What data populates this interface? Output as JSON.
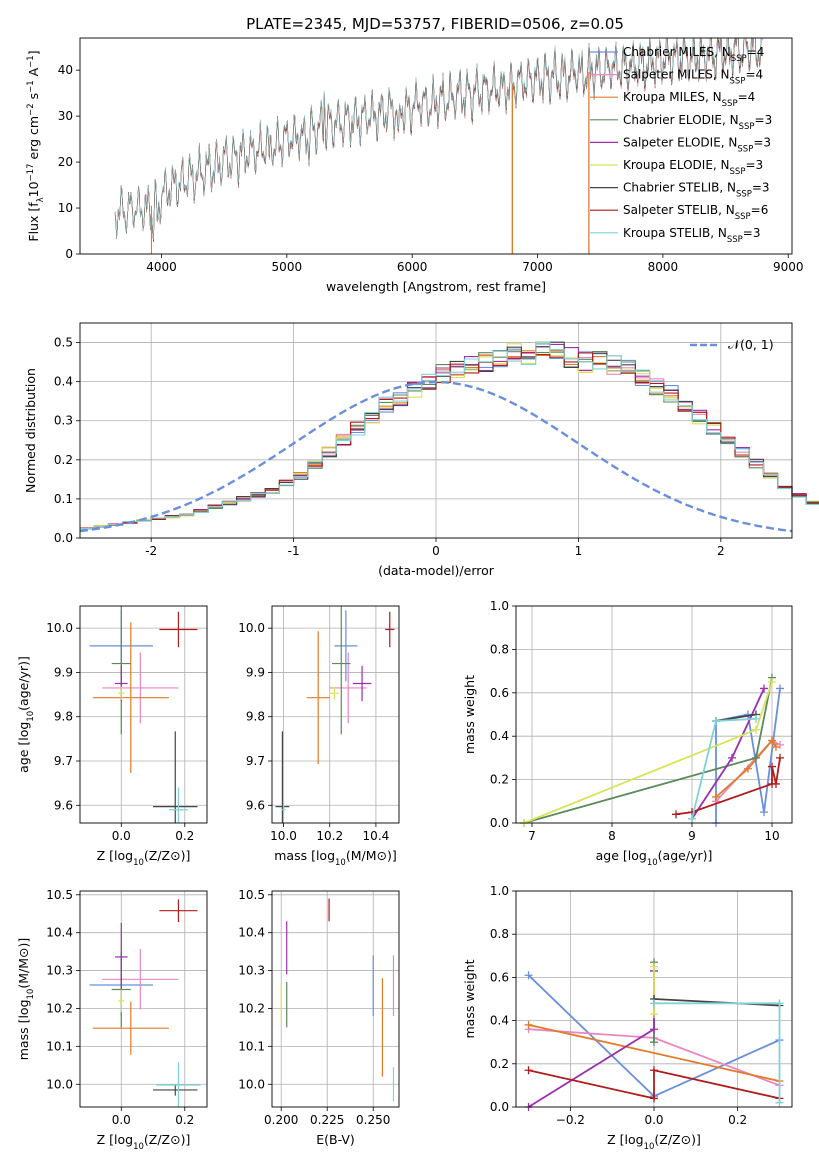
{
  "figure_title": "PLATE=2345, MJD=53757, FIBERID=0506, z=0.05",
  "colors": {
    "Chabrier MILES": "#6a8fdc",
    "Salpeter MILES": "#e887c2",
    "Kroupa MILES": "#e07b2a",
    "Chabrier ELODIE": "#5b8a5b",
    "Salpeter ELODIE": "#9b2fb0",
    "Kroupa ELODIE": "#d7e45a",
    "Chabrier STELIB": "#444444",
    "Salpeter STELIB": "#b01c1c",
    "Kroupa STELIB": "#7fd3d8"
  },
  "chart_data": [
    {
      "id": "spectrum",
      "type": "line",
      "xlabel": "wavelength [Angstrom, rest frame]",
      "ylabel_parts": [
        "Flux [f",
        "λ",
        "10",
        "−17",
        " erg cm",
        "−2",
        " s",
        "−1",
        " A",
        "−1",
        "]"
      ],
      "xlim": [
        3350,
        9030
      ],
      "ylim": [
        0,
        47
      ],
      "xticks": [
        4000,
        5000,
        6000,
        7000,
        8000,
        9000
      ],
      "yticks": [
        0,
        10,
        20,
        30,
        40
      ],
      "grid": false,
      "legend_position": "upper-right",
      "series": [
        {
          "name": "Chabrier MILES",
          "nssp": "4"
        },
        {
          "name": "Salpeter MILES",
          "nssp": "4"
        },
        {
          "name": "Kroupa MILES",
          "nssp": "4"
        },
        {
          "name": "Chabrier ELODIE",
          "nssp": "3"
        },
        {
          "name": "Salpeter ELODIE",
          "nssp": "3"
        },
        {
          "name": "Kroupa ELODIE",
          "nssp": "3"
        },
        {
          "name": "Chabrier STELIB",
          "nssp": "3"
        },
        {
          "name": "Salpeter STELIB",
          "nssp": "6"
        },
        {
          "name": "Kroupa STELIB",
          "nssp": "3"
        }
      ],
      "continuum_knots": [
        [
          3630,
          9
        ],
        [
          3900,
          10
        ],
        [
          4100,
          15
        ],
        [
          4500,
          20
        ],
        [
          5000,
          25
        ],
        [
          5500,
          29
        ],
        [
          6000,
          32
        ],
        [
          6500,
          35
        ],
        [
          7000,
          38
        ],
        [
          7500,
          40
        ],
        [
          8000,
          42
        ],
        [
          8500,
          44
        ],
        [
          8800,
          45
        ]
      ],
      "absorption_features": [
        [
          3934,
          5
        ],
        [
          3969,
          5
        ],
        [
          4861,
          3
        ],
        [
          5175,
          4
        ],
        [
          5890,
          8
        ],
        [
          6563,
          3
        ]
      ],
      "emission_features": [
        [
          5300,
          10
        ],
        [
          6563,
          8
        ]
      ],
      "drops": [
        {
          "series": "Kroupa MILES",
          "x": 3920
        },
        {
          "series": "Kroupa ELODIE",
          "x": 6795
        },
        {
          "series": "Kroupa MILES",
          "x": 6800
        },
        {
          "series": "Salpeter STELIB",
          "x": 7410
        },
        {
          "series": "Kroupa MILES",
          "x": 7410
        }
      ]
    },
    {
      "id": "residuals",
      "type": "histogram",
      "xlabel": "(data-model)/error",
      "ylabel": "Normed distribution",
      "xlim": [
        -2.5,
        2.5
      ],
      "ylim": [
        0,
        0.55
      ],
      "xticks": [
        -2,
        -1,
        0,
        1,
        2
      ],
      "yticks": [
        0.0,
        0.1,
        0.2,
        0.3,
        0.4,
        0.5
      ],
      "grid": true,
      "legend_position": "upper-right",
      "reference_curve": {
        "label_parts": [
          "𝒩",
          "(0, 1)"
        ],
        "mean": 0,
        "sigma": 1,
        "color": "#6a8fdc"
      },
      "bin_width": 0.1,
      "bin_start": -2.5,
      "envelope_values": [
        0.025,
        0.03,
        0.035,
        0.04,
        0.045,
        0.05,
        0.055,
        0.06,
        0.07,
        0.08,
        0.09,
        0.1,
        0.11,
        0.12,
        0.14,
        0.16,
        0.19,
        0.22,
        0.25,
        0.28,
        0.31,
        0.34,
        0.36,
        0.38,
        0.4,
        0.42,
        0.43,
        0.44,
        0.45,
        0.46,
        0.47,
        0.47,
        0.48,
        0.48,
        0.46,
        0.45,
        0.45,
        0.44,
        0.43,
        0.41,
        0.39,
        0.37,
        0.34,
        0.31,
        0.28,
        0.25,
        0.22,
        0.19,
        0.16,
        0.13,
        0.11,
        0.09,
        0.075,
        0.065,
        0.055,
        0.045,
        0.04,
        0.035,
        0.03,
        0.025,
        0.022,
        0.02,
        0.02,
        0.018,
        0.018,
        0.016,
        0.015,
        0.014,
        0.013,
        0.012
      ]
    },
    {
      "id": "age_vs_Z",
      "type": "errorbar",
      "xlabel_parts": [
        "Z [log",
        "10",
        "(Z/Z",
        "⊙",
        ")]"
      ],
      "ylabel_parts": [
        "age  [log",
        "10",
        "(age/yr)]"
      ],
      "xlim": [
        -0.13,
        0.27
      ],
      "ylim": [
        9.56,
        10.05
      ],
      "xticks": [
        0.0,
        0.2
      ],
      "yticks": [
        9.6,
        9.7,
        9.8,
        9.9,
        10.0
      ],
      "grid": true,
      "points": [
        {
          "series": "Chabrier MILES",
          "x": 0.0,
          "xerr": 0.1,
          "y": 9.96,
          "yerr": 0.08
        },
        {
          "series": "Salpeter MILES",
          "x": 0.06,
          "xerr": 0.12,
          "y": 9.865,
          "yerr": 0.08
        },
        {
          "series": "Kroupa MILES",
          "x": 0.03,
          "xerr": 0.12,
          "y": 9.843,
          "yerr": 0.17
        },
        {
          "series": "Chabrier ELODIE",
          "x": 0.0,
          "xerr": 0.03,
          "y": 9.92,
          "yerr": 0.16
        },
        {
          "series": "Salpeter ELODIE",
          "x": 0.0,
          "xerr": 0.02,
          "y": 9.875,
          "yerr": 0.04
        },
        {
          "series": "Kroupa ELODIE",
          "x": 0.0,
          "xerr": 0.01,
          "y": 9.853,
          "yerr": 0.015
        },
        {
          "series": "Chabrier STELIB",
          "x": 0.17,
          "xerr": 0.07,
          "y": 9.597,
          "yerr": 0.17
        },
        {
          "series": "Salpeter STELIB",
          "x": 0.18,
          "xerr": 0.06,
          "y": 9.997,
          "yerr": 0.04
        },
        {
          "series": "Kroupa STELIB",
          "x": 0.18,
          "xerr": 0.03,
          "y": 9.59,
          "yerr": 0.05
        }
      ]
    },
    {
      "id": "age_vs_mass",
      "type": "errorbar",
      "xlabel_parts": [
        "mass [log",
        "10",
        "(M/M",
        "⊙",
        ")]"
      ],
      "ylabel_parts": [],
      "xlim": [
        9.95,
        10.5
      ],
      "ylim": [
        9.56,
        10.05
      ],
      "xticks": [
        10.0,
        10.2,
        10.4
      ],
      "yticks": [
        9.6,
        9.7,
        9.8,
        9.9,
        10.0
      ],
      "grid": true,
      "points": [
        {
          "series": "Chabrier MILES",
          "x": 10.27,
          "xerr": 0.05,
          "y": 9.96,
          "yerr": 0.08
        },
        {
          "series": "Salpeter MILES",
          "x": 10.28,
          "xerr": 0.08,
          "y": 9.865,
          "yerr": 0.08
        },
        {
          "series": "Kroupa MILES",
          "x": 10.15,
          "xerr": 0.05,
          "y": 9.843,
          "yerr": 0.15
        },
        {
          "series": "Chabrier ELODIE",
          "x": 10.25,
          "xerr": 0.04,
          "y": 9.92,
          "yerr": 0.16
        },
        {
          "series": "Salpeter ELODIE",
          "x": 10.34,
          "xerr": 0.04,
          "y": 9.875,
          "yerr": 0.04
        },
        {
          "series": "Kroupa ELODIE",
          "x": 10.22,
          "xerr": 0.02,
          "y": 9.853,
          "yerr": 0.015
        },
        {
          "series": "Chabrier STELIB",
          "x": 9.995,
          "xerr": 0.03,
          "y": 9.597,
          "yerr": 0.17
        },
        {
          "series": "Salpeter STELIB",
          "x": 10.46,
          "xerr": 0.02,
          "y": 9.997,
          "yerr": 0.04
        },
        {
          "series": "Kroupa STELIB",
          "x": 10.0,
          "xerr": 0.01,
          "y": 9.59,
          "yerr": 0.02
        }
      ]
    },
    {
      "id": "mass_vs_Z",
      "type": "errorbar",
      "xlabel_parts": [
        "Z [log",
        "10",
        "(Z/Z",
        "⊙",
        ")]"
      ],
      "ylabel_parts": [
        "mass [log",
        "10",
        "(M/M",
        "⊙",
        ")]"
      ],
      "xlim": [
        -0.13,
        0.27
      ],
      "ylim": [
        9.94,
        10.51
      ],
      "xticks": [
        0.0,
        0.2
      ],
      "yticks": [
        10.0,
        10.1,
        10.2,
        10.3,
        10.4,
        10.5
      ],
      "grid": true,
      "points": [
        {
          "series": "Chabrier MILES",
          "x": 0.0,
          "xerr": 0.1,
          "y": 10.262,
          "yerr": 0.08
        },
        {
          "series": "Salpeter MILES",
          "x": 0.06,
          "xerr": 0.12,
          "y": 10.277,
          "yerr": 0.08
        },
        {
          "series": "Kroupa MILES",
          "x": 0.03,
          "xerr": 0.12,
          "y": 10.148,
          "yerr": 0.07
        },
        {
          "series": "Chabrier ELODIE",
          "x": 0.0,
          "xerr": 0.03,
          "y": 10.25,
          "yerr": 0.1
        },
        {
          "series": "Salpeter ELODIE",
          "x": 0.0,
          "xerr": 0.02,
          "y": 10.336,
          "yerr": 0.09
        },
        {
          "series": "Kroupa ELODIE",
          "x": 0.0,
          "xerr": 0.01,
          "y": 10.22,
          "yerr": 0.03
        },
        {
          "series": "Chabrier STELIB",
          "x": 0.17,
          "xerr": 0.07,
          "y": 9.985,
          "yerr": 0.015
        },
        {
          "series": "Salpeter STELIB",
          "x": 0.18,
          "xerr": 0.06,
          "y": 10.458,
          "yerr": 0.03
        },
        {
          "series": "Kroupa STELIB",
          "x": 0.18,
          "xerr": 0.07,
          "y": 9.998,
          "yerr": 0.06
        }
      ]
    },
    {
      "id": "mass_vs_ebv",
      "type": "errorbar",
      "xlabel": "E(B-V)",
      "ylabel_parts": [],
      "xlim": [
        0.195,
        0.264
      ],
      "ylim": [
        9.94,
        10.51
      ],
      "xticks": [
        0.2,
        0.225,
        0.25
      ],
      "ytick_labels": [
        "10.0",
        "10.1",
        "10.2",
        "10.3",
        "10.4",
        "10.5"
      ],
      "yticks": [
        10.0,
        10.1,
        10.2,
        10.3,
        10.4,
        10.5
      ],
      "xtick_labels": [
        "0.200",
        "0.225",
        "0.250"
      ],
      "grid": true,
      "points": [
        {
          "series": "Chabrier MILES",
          "x": 0.25,
          "y": 10.26,
          "yerr": 0.08
        },
        {
          "series": "Salpeter MILES",
          "x": 0.261,
          "y": 10.26,
          "yerr": 0.08
        },
        {
          "series": "Kroupa MILES",
          "x": 0.255,
          "y": 10.15,
          "yerr": 0.13
        },
        {
          "series": "Chabrier ELODIE",
          "x": 0.203,
          "y": 10.21,
          "yerr": 0.06
        },
        {
          "series": "Salpeter ELODIE",
          "x": 0.203,
          "y": 10.36,
          "yerr": 0.07
        },
        {
          "series": "Kroupa ELODIE",
          "x": 0.2,
          "y": 10.22,
          "yerr": 0.05
        },
        {
          "series": "Salpeter STELIB",
          "x": 0.226,
          "y": 10.46,
          "yerr": 0.03
        },
        {
          "series": "Kroupa STELIB",
          "x": 0.261,
          "y": 10.0,
          "yerr": 0.045
        }
      ]
    },
    {
      "id": "weight_vs_age",
      "type": "line",
      "xlabel_parts": [
        "age  [log",
        "10",
        "(age/yr)]"
      ],
      "ylabel": "mass weight",
      "xlim": [
        6.8,
        10.25
      ],
      "ylim": [
        0.0,
        1.0
      ],
      "xticks": [
        7,
        8,
        9,
        10
      ],
      "yticks": [
        0.0,
        0.2,
        0.4,
        0.6,
        0.8,
        1.0
      ],
      "grid": true,
      "series": [
        {
          "name": "Chabrier MILES",
          "points": [
            [
              9.3,
              0.0
            ],
            [
              9.3,
              0.47
            ],
            [
              9.7,
              0.5
            ],
            [
              9.9,
              0.05
            ],
            [
              10.1,
              0.62
            ]
          ]
        },
        {
          "name": "Salpeter MILES",
          "points": [
            [
              9.3,
              0.1
            ],
            [
              10.0,
              0.38
            ],
            [
              10.1,
              0.36
            ]
          ]
        },
        {
          "name": "Kroupa MILES",
          "points": [
            [
              9.3,
              0.12
            ],
            [
              9.7,
              0.25
            ],
            [
              10.0,
              0.38
            ],
            [
              10.05,
              0.35
            ]
          ]
        },
        {
          "name": "Chabrier ELODIE",
          "points": [
            [
              6.9,
              0.0
            ],
            [
              9.8,
              0.3
            ],
            [
              10.0,
              0.67
            ]
          ]
        },
        {
          "name": "Salpeter ELODIE",
          "points": [
            [
              9.0,
              0.02
            ],
            [
              9.5,
              0.3
            ],
            [
              9.9,
              0.62
            ]
          ]
        },
        {
          "name": "Kroupa ELODIE",
          "points": [
            [
              6.9,
              0.0
            ],
            [
              9.8,
              0.43
            ],
            [
              10.0,
              0.65
            ]
          ]
        },
        {
          "name": "Chabrier STELIB",
          "points": [
            [
              9.3,
              0.47
            ],
            [
              9.8,
              0.5
            ]
          ]
        },
        {
          "name": "Salpeter STELIB",
          "points": [
            [
              8.8,
              0.04
            ],
            [
              9.0,
              0.05
            ],
            [
              10.0,
              0.18
            ],
            [
              10.0,
              0.26
            ],
            [
              10.05,
              0.18
            ],
            [
              10.1,
              0.3
            ]
          ]
        },
        {
          "name": "Kroupa STELIB",
          "points": [
            [
              9.0,
              0.02
            ],
            [
              9.3,
              0.47
            ],
            [
              9.8,
              0.48
            ]
          ]
        }
      ]
    },
    {
      "id": "weight_vs_Z",
      "type": "line",
      "xlabel_parts": [
        "Z [log",
        "10",
        "(Z/Z",
        "⊙",
        ")]"
      ],
      "ylabel": "mass weight",
      "xlim": [
        -0.33,
        0.33
      ],
      "ylim": [
        0.0,
        1.0
      ],
      "xticks": [
        -0.2,
        0.0,
        0.2
      ],
      "xtick_labels": [
        "−0.2",
        "0.0",
        "0.2"
      ],
      "yticks": [
        0.0,
        0.2,
        0.4,
        0.6,
        0.8,
        1.0
      ],
      "grid": true,
      "series": [
        {
          "name": "Chabrier MILES",
          "points": [
            [
              -0.3,
              0.61
            ],
            [
              0.0,
              0.05
            ],
            [
              0.3,
              0.31
            ]
          ]
        },
        {
          "name": "Salpeter MILES",
          "points": [
            [
              -0.3,
              0.36
            ],
            [
              0.0,
              0.32
            ],
            [
              0.3,
              0.1
            ]
          ]
        },
        {
          "name": "Kroupa MILES",
          "points": [
            [
              -0.3,
              0.38
            ],
            [
              0.3,
              0.12
            ]
          ]
        },
        {
          "name": "Chabrier ELODIE",
          "points": [
            [
              0.0,
              0.67
            ],
            [
              0.0,
              0.3
            ]
          ]
        },
        {
          "name": "Salpeter ELODIE",
          "points": [
            [
              -0.3,
              0.0
            ],
            [
              0.0,
              0.36
            ],
            [
              0.0,
              0.63
            ]
          ]
        },
        {
          "name": "Kroupa ELODIE",
          "points": [
            [
              0.0,
              0.65
            ],
            [
              0.0,
              0.43
            ]
          ]
        },
        {
          "name": "Chabrier STELIB",
          "points": [
            [
              0.0,
              0.5
            ],
            [
              0.3,
              0.47
            ]
          ]
        },
        {
          "name": "Salpeter STELIB",
          "points": [
            [
              -0.3,
              0.17
            ],
            [
              0.0,
              0.04
            ],
            [
              0.0,
              0.17
            ],
            [
              0.3,
              0.04
            ]
          ]
        },
        {
          "name": "Kroupa STELIB",
          "points": [
            [
              0.0,
              0.48
            ],
            [
              0.3,
              0.48
            ],
            [
              0.3,
              0.02
            ]
          ]
        }
      ]
    }
  ]
}
